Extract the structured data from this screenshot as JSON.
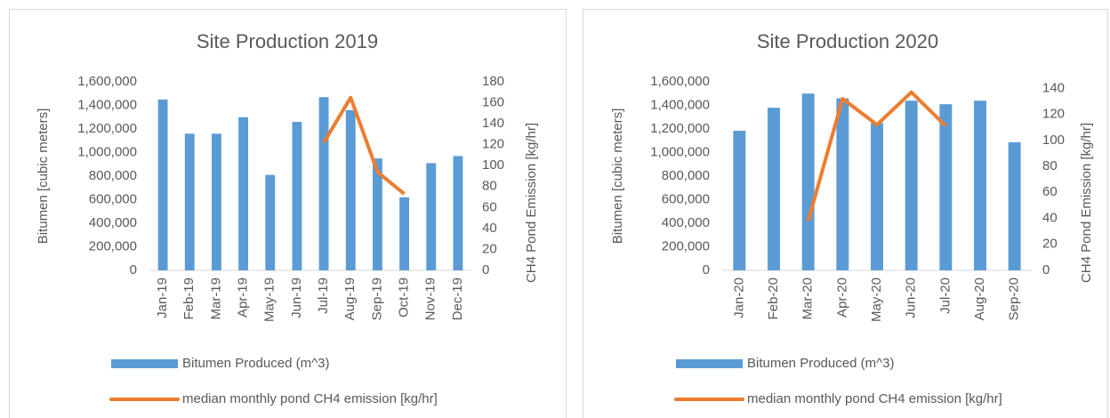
{
  "chart_data": [
    {
      "type": "bar-line",
      "title": "Site Production 2019",
      "y_label": "Bitumen [cubic meters]",
      "y2_label": "CH4 Pond Emission [kg/hr]",
      "categories": [
        "Jan-19",
        "Feb-19",
        "Mar-19",
        "Apr-19",
        "May-19",
        "Jun-19",
        "Jul-19",
        "Aug-19",
        "Sep-19",
        "Oct-19",
        "Nov-19",
        "Dec-19"
      ],
      "series": [
        {
          "name": "Bitumen Produced (m^3)",
          "color": "#5b9bd5",
          "kind": "bar",
          "values": [
            1450000,
            1160000,
            1160000,
            1300000,
            810000,
            1260000,
            1470000,
            1360000,
            950000,
            620000,
            910000,
            970000
          ]
        },
        {
          "name": "median monthly pond CH4 emission [kg/hr]",
          "color": "#ed7d31",
          "kind": "line",
          "axis": "y2",
          "values": [
            null,
            null,
            null,
            null,
            null,
            null,
            122,
            165,
            94,
            73,
            null,
            null
          ]
        }
      ],
      "ylim": [
        0,
        1600000
      ],
      "yticks": [
        0,
        {
          "value": 200000,
          "label": "200,000"
        },
        {
          "value": 400000,
          "label": "400,000"
        },
        {
          "value": 600000,
          "label": "600,000"
        },
        {
          "value": 800000,
          "label": "800,000"
        },
        {
          "value": 1000000,
          "label": "1,000,000"
        },
        {
          "value": 1200000,
          "label": "1,200,000"
        },
        {
          "value": 1400000,
          "label": "1,400,000"
        },
        {
          "value": 1600000,
          "label": "1,600,000"
        }
      ],
      "y2lim": [
        0,
        180
      ],
      "y2ticks": [
        0,
        20,
        40,
        60,
        80,
        100,
        120,
        140,
        160,
        180
      ],
      "legend": "bottom"
    },
    {
      "type": "bar-line",
      "title": "Site Production 2020",
      "y_label": "Bitumen [cubic meters]",
      "y2_label": "CH4 Pond Emission [kg/hr]",
      "categories": [
        "Jan-20",
        "Feb-20",
        "Mar-20",
        "Apr-20",
        "May-20",
        "Jun-20",
        "Jul-20",
        "Aug-20",
        "Sep-20"
      ],
      "series": [
        {
          "name": "Bitumen Produced (m^3)",
          "color": "#5b9bd5",
          "kind": "bar",
          "values": [
            1185000,
            1380000,
            1500000,
            1460000,
            1250000,
            1440000,
            1410000,
            1440000,
            1087000
          ]
        },
        {
          "name": "median monthly pond CH4 emission [kg/hr]",
          "color": "#ed7d31",
          "kind": "line",
          "axis": "y2",
          "values": [
            null,
            null,
            38,
            132,
            112,
            137,
            111,
            null,
            null
          ]
        }
      ],
      "ylim": [
        0,
        1600000
      ],
      "yticks": [
        0,
        {
          "value": 200000,
          "label": "200,000"
        },
        {
          "value": 400000,
          "label": "400,000"
        },
        {
          "value": 600000,
          "label": "600,000"
        },
        {
          "value": 800000,
          "label": "800,000"
        },
        {
          "value": 1000000,
          "label": "1,000,000"
        },
        {
          "value": 1200000,
          "label": "1,200,000"
        },
        {
          "value": 1400000,
          "label": "1,400,000"
        },
        {
          "value": 1600000,
          "label": "1,600,000"
        }
      ],
      "y2lim": [
        0,
        145
      ],
      "y2ticks": [
        0,
        20,
        40,
        60,
        80,
        100,
        120,
        140
      ],
      "legend": "bottom"
    }
  ]
}
